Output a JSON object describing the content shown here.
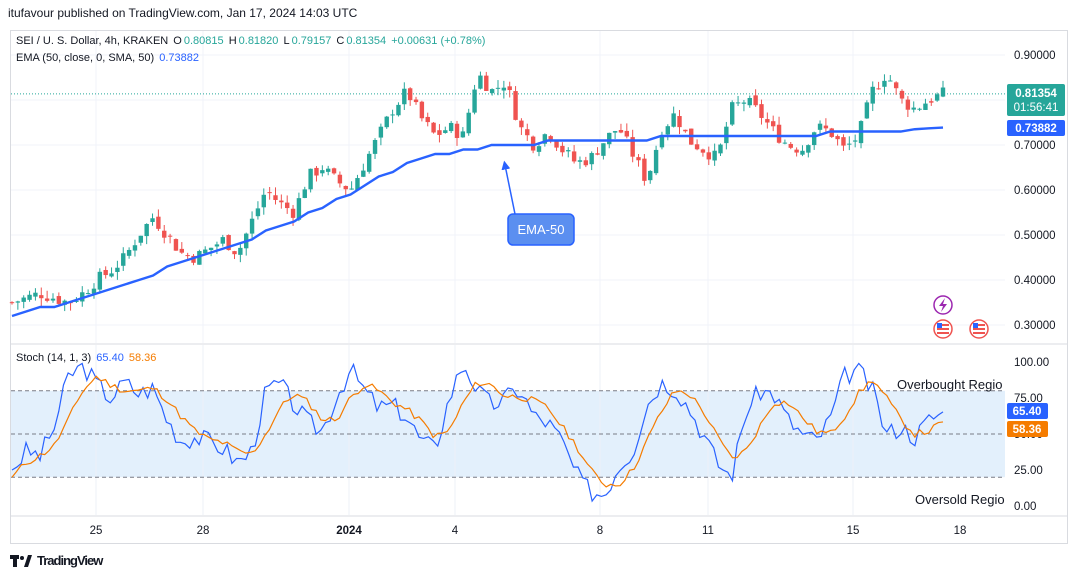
{
  "header": {
    "published": "itufavour published on TradingView.com, Jan 17, 2024 14:03 UTC"
  },
  "price_legend": {
    "symbol": "SEI / U. S. Dollar, 4h, KRAKEN",
    "o_label": "O",
    "o": "0.80815",
    "h_label": "H",
    "h": "0.81820",
    "l_label": "L",
    "l": "0.79157",
    "c_label": "C",
    "c": "0.81354",
    "change": "+0.00631 (+0.78%)"
  },
  "ema_legend": {
    "label": "EMA (50, close, 0, SMA, 50)",
    "value": "0.73882"
  },
  "stoch_legend": {
    "label": "Stoch (14, 1, 3)",
    "k": "65.40",
    "d": "58.36"
  },
  "price_axis": {
    "ticks": [
      "0.90000",
      "0.80000",
      "0.70000",
      "0.60000",
      "0.50000",
      "0.40000",
      "0.30000"
    ]
  },
  "stoch_axis": {
    "ticks": [
      "100.00",
      "75.00",
      "50.00",
      "25.00",
      "0.00"
    ]
  },
  "x_axis": {
    "ticks": [
      "25",
      "28",
      "2024",
      "4",
      "8",
      "11",
      "15",
      "18"
    ]
  },
  "price_badge": {
    "price": "0.81354",
    "countdown": "01:56:41"
  },
  "ema_badge": "0.73882",
  "k_badge": "65.40",
  "d_badge": "58.36",
  "callout": "EMA-50",
  "overbought": "Overbought Regio",
  "oversold": "Oversold Regio",
  "footer": {
    "brand": "TradingView"
  },
  "colors": {
    "up": "#26a69a",
    "down": "#ef5350",
    "ema": "#2962ff",
    "k": "#2962ff",
    "d": "#f57c00",
    "band": "#e3f0fc"
  },
  "chart_data": {
    "type": "candlestick",
    "ylim": [
      0.27,
      0.92
    ],
    "stoch_ylim": [
      0,
      100
    ],
    "last_close": 0.81354,
    "ema_last": 0.73882,
    "overbought_level": 80,
    "oversold_level": 20,
    "price_path": [
      0.35,
      0.36,
      0.37,
      0.36,
      0.35,
      0.37,
      0.4,
      0.42,
      0.45,
      0.5,
      0.54,
      0.5,
      0.46,
      0.45,
      0.47,
      0.49,
      0.46,
      0.53,
      0.6,
      0.57,
      0.55,
      0.63,
      0.65,
      0.62,
      0.6,
      0.66,
      0.72,
      0.78,
      0.82,
      0.76,
      0.72,
      0.74,
      0.72,
      0.86,
      0.82,
      0.84,
      0.74,
      0.7,
      0.73,
      0.69,
      0.66,
      0.67,
      0.71,
      0.74,
      0.68,
      0.62,
      0.73,
      0.77,
      0.71,
      0.69,
      0.67,
      0.78,
      0.8,
      0.77,
      0.73,
      0.7,
      0.69,
      0.74,
      0.73,
      0.69,
      0.72,
      0.82,
      0.86,
      0.8,
      0.78,
      0.8,
      0.81354
    ],
    "ema_path": [
      0.32,
      0.33,
      0.34,
      0.34,
      0.35,
      0.36,
      0.37,
      0.38,
      0.39,
      0.4,
      0.41,
      0.43,
      0.44,
      0.45,
      0.46,
      0.47,
      0.48,
      0.49,
      0.51,
      0.52,
      0.53,
      0.55,
      0.56,
      0.58,
      0.59,
      0.61,
      0.63,
      0.64,
      0.66,
      0.67,
      0.68,
      0.68,
      0.69,
      0.69,
      0.7,
      0.7,
      0.7,
      0.7,
      0.71,
      0.71,
      0.71,
      0.71,
      0.71,
      0.71,
      0.71,
      0.71,
      0.72,
      0.72,
      0.72,
      0.72,
      0.72,
      0.72,
      0.72,
      0.72,
      0.72,
      0.72,
      0.72,
      0.72,
      0.73,
      0.73,
      0.73,
      0.73,
      0.73,
      0.73,
      0.735,
      0.737,
      0.73882
    ],
    "stoch_k": [
      25,
      38,
      35,
      55,
      90,
      98,
      85,
      75,
      86,
      78,
      82,
      60,
      45,
      48,
      45,
      40,
      30,
      38,
      80,
      85,
      70,
      58,
      52,
      76,
      95,
      80,
      68,
      70,
      62,
      45,
      40,
      75,
      100,
      80,
      70,
      75,
      82,
      62,
      58,
      45,
      22,
      10,
      8,
      28,
      38,
      70,
      86,
      82,
      68,
      50,
      30,
      20,
      65,
      80,
      78,
      60,
      50,
      45,
      60,
      90,
      95,
      80,
      50,
      55,
      48,
      60,
      65.4
    ],
    "stoch_d": [
      20,
      30,
      35,
      42,
      60,
      80,
      90,
      84,
      80,
      80,
      82,
      74,
      62,
      52,
      46,
      44,
      38,
      36,
      50,
      68,
      78,
      72,
      60,
      60,
      75,
      85,
      80,
      72,
      67,
      59,
      48,
      52,
      72,
      86,
      84,
      76,
      76,
      73,
      68,
      55,
      42,
      25,
      15,
      15,
      25,
      45,
      65,
      80,
      78,
      66,
      48,
      33,
      38,
      55,
      72,
      72,
      62,
      52,
      50,
      62,
      78,
      88,
      75,
      60,
      50,
      52,
      58.36
    ]
  }
}
